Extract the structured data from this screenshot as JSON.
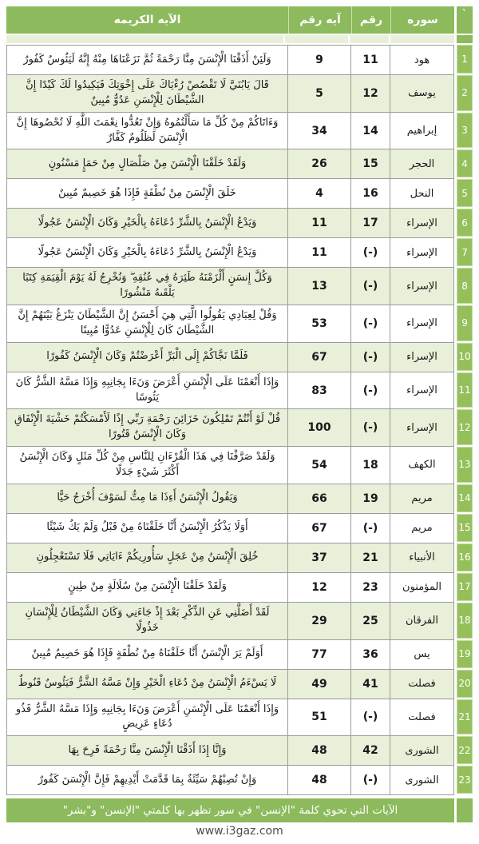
{
  "header": {
    "corner_mark": "`",
    "surah_label": "سوره",
    "number_label": "رقم",
    "verse_number_label": "آيه رقم",
    "verse_label": "الآيه الكريمه"
  },
  "rows": [
    {
      "n": "1",
      "surah": "هود",
      "number": "11",
      "verse_number": "9",
      "verse": "وَلَئِنْ أَذَقْنَا الْإِنْسَنَ مِنَّا رَحْمَةً ثُمَّ نَزَعْنَاهَا مِنْهُ إِنَّهُ لَيَئُوسٌ كَفُورٌ"
    },
    {
      "n": "2",
      "surah": "يوسف",
      "number": "12",
      "verse_number": "5",
      "verse": "قَالَ يَابُنَيَّ لَا تَقْصُصْ رُءْيَاكَ عَلَى إِخْوَتِكَ فَيَكِيدُوا لَكَ كَيْدًا إِنَّ الشَّيْطَانَ لِلْإِنْسَنِ عَدُوٌّ مُبِينٌ"
    },
    {
      "n": "3",
      "surah": "إبراهيم",
      "number": "14",
      "verse_number": "34",
      "verse": "وَءَاتَاكُمْ مِنْ كُلِّ مَا سَأَلْتُمُوهُ وَإِنْ تَعُدُّوا نِعْمَتَ اللَّهِ لَا تُحْصُوهَا إِنَّ الْإِنْسَنَ لَظَلُومٌ كَفَّارٌ"
    },
    {
      "n": "4",
      "surah": "الحجر",
      "number": "15",
      "verse_number": "26",
      "verse": "وَلَقَدْ خَلَقْنَا الْإِنْسَنَ مِنْ صَلْصَالٍ مِنْ حَمَإٍ مَسْنُونٍ"
    },
    {
      "n": "5",
      "surah": "النحل",
      "number": "16",
      "verse_number": "4",
      "verse": "خَلَقَ الْإِنْسَنَ مِنْ نُطْفَةٍ فَإِذَا هُوَ خَصِيمٌ مُبِينٌ"
    },
    {
      "n": "6",
      "surah": "الإسراء",
      "number": "17",
      "verse_number": "11",
      "verse": "وَيَدْعُ الْإِنْسَنُ بِالشَّرِّ دُعَاءَهُ بِالْخَيْرِ وَكَانَ الْإِنْسَنُ عَجُولًا"
    },
    {
      "n": "7",
      "surah": "الإسراء",
      "number": "(-)",
      "verse_number": "11",
      "verse": "وَيَدْعُ الْإِنْسَنُ بِالشَّرِّ دُعَاءَهُ بِالْخَيْرِ وَكَانَ الْإِنْسَنُ عَجُولًا"
    },
    {
      "n": "8",
      "surah": "الإسراء",
      "number": "(-)",
      "verse_number": "13",
      "verse": "وَكُلَّ إِنسَنٍ أَلْزَمْنَهُ طَئِرَهُ فِي عُنُقِهِ ۖ وَنُخْرِجُ لَهُ يَوْمَ الْقِيَمَةِ كِتَبًا يَلْقَىهُ مَنْشُورًا"
    },
    {
      "n": "9",
      "surah": "الإسراء",
      "number": "(-)",
      "verse_number": "53",
      "verse": "وَقُلْ لِعِبَادِي يَقُولُوا الَّتِي هِيَ أَحْسَنُ إِنَّ الشَّيْطَانَ يَنْزَغُ بَيْنَهُمْ إِنَّ الشَّيْطَانَ كَانَ لِلْإِنْسَنِ عَدُوًّا مُبِينًا"
    },
    {
      "n": "10",
      "surah": "الإسراء",
      "number": "(-)",
      "verse_number": "67",
      "verse": "فَلَمَّا نَجَّاكُمْ إِلَى الْبَرِّ أَعْرَضْتُمْ وَكَانَ الْإِنْسَنُ كَفُورًا"
    },
    {
      "n": "11",
      "surah": "الإسراء",
      "number": "(-)",
      "verse_number": "83",
      "verse": "وَإِذَا أَنْعَمْنَا عَلَى الْإِنْسَنِ أَعْرَضَ وَنَءَا بِجَانِبِهِ وَإِذَا مَسَّهُ الشَّرُّ كَانَ يَئُوسًا"
    },
    {
      "n": "12",
      "surah": "الإسراء",
      "number": "(-)",
      "verse_number": "100",
      "verse": "قُلْ لَوْ أَنْتُمْ تَمْلِكُونَ خَزَائِنَ رَحْمَةِ رَبِّي إِذًا لَأَمْسَكْتُمْ خَشْيَةَ الْإِنْفَاقِ وَكَانَ الْإِنْسَنُ قَتُورًا"
    },
    {
      "n": "13",
      "surah": "الكهف",
      "number": "18",
      "verse_number": "54",
      "verse": "وَلَقَدْ صَرَّفْنَا فِي هَذَا الْقُرْءَانِ لِلنَّاسِ مِنْ كُلِّ مَثَلٍ وَكَانَ الْإِنْسَنُ أَكْثَرَ شَيْءٍ جَدَلًا"
    },
    {
      "n": "14",
      "surah": "مريم",
      "number": "19",
      "verse_number": "66",
      "verse": "وَيَقُولُ الْإِنْسَنُ أَءِذَا مَا مِتُّ لَسَوْفَ أُخْرَجُ حَيًّا"
    },
    {
      "n": "15",
      "surah": "مريم",
      "number": "(-)",
      "verse_number": "67",
      "verse": "أَوَلَا يَذْكُرُ الْإِنْسَنُ أَنَّا خَلَقْنَاهُ مِنْ قَبْلُ وَلَمْ يَكُ شَيْئًا"
    },
    {
      "n": "16",
      "surah": "الأنبياء",
      "number": "21",
      "verse_number": "37",
      "verse": "خُلِقَ الْإِنْسَنُ مِنْ عَجَلٍ سَأُورِيكُمْ ءَايَاتِي فَلَا تَسْتَعْجِلُونِ"
    },
    {
      "n": "17",
      "surah": "المؤمنون",
      "number": "23",
      "verse_number": "12",
      "verse": "وَلَقَدْ خَلَقْنَا الْإِنْسَنَ مِنْ سُلَالَةٍ مِنْ طِينٍ"
    },
    {
      "n": "18",
      "surah": "الفرقان",
      "number": "25",
      "verse_number": "29",
      "verse": "لَقَدْ أَضَلَّنِي عَنِ الذِّكْرِ بَعْدَ إِذْ جَاءَنِي وَكَانَ الشَّيْطَانُ لِلْإِنْسَانِ خَذُولًا"
    },
    {
      "n": "19",
      "surah": "يس",
      "number": "36",
      "verse_number": "77",
      "verse": "أَوَلَمْ يَرَ الْإِنْسَنُ أَنَّا خَلَقْنَاهُ مِنْ نُطْفَةٍ فَإِذَا هُوَ خَصِيمٌ مُبِينٌ"
    },
    {
      "n": "20",
      "surah": "فصلت",
      "number": "41",
      "verse_number": "49",
      "verse": "لَا يَسْءَمُ الْإِنْسَنُ مِنْ دُعَاءِ الْخَيْرِ وَإِنْ مَسَّهُ الشَّرُّ فَيَئُوسٌ قَنُوطٌ"
    },
    {
      "n": "21",
      "surah": "فصلت",
      "number": "(-)",
      "verse_number": "51",
      "verse": "وَإِذَا أَنْعَمْنَا عَلَى الْإِنْسَنِ أَعْرَضَ وَنَءَا بِجَانِبِهِ وَإِذَا مَسَّهُ الشَّرُّ فَذُو دُعَاءٍ عَرِيضٍ"
    },
    {
      "n": "22",
      "surah": "الشورى",
      "number": "42",
      "verse_number": "48",
      "verse": "وَإِنَّا إِذَا أَذَقْنَا الْإِنْسَنَ مِنَّا رَحْمَةً فَرِحَ بِهَا"
    },
    {
      "n": "23",
      "surah": "الشورى",
      "number": "(-)",
      "verse_number": "48",
      "verse": "وَإِنْ تُصِبْهُمْ سَيِّئَةٌ بِمَا قَدَّمَتْ أَيْدِيهِمْ فَإِنَّ الْإِنْسَنَ كَفُورٌ"
    }
  ],
  "footer": {
    "caption": "الآيات التي تحوي كلمة \"الإنسن\" في سور تظهر بها كلمتي \"الإنسن\" و\"بشر\"",
    "url": "www.i3gaz.com"
  },
  "colors": {
    "header_green": "#8cba5c",
    "row_number_green": "#95bf5b",
    "alt_row_green": "#e9f0da",
    "border_gray": "#9b9b9b",
    "url_text": "#4c4c4c"
  }
}
